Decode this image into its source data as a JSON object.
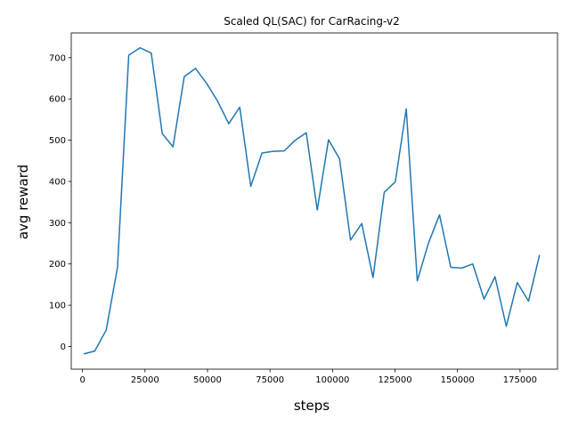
{
  "chart_data": {
    "type": "line",
    "title": "Scaled QL(SAC) for CarRacing-v2",
    "xlabel": "steps",
    "ylabel": "avg reward",
    "xlim": [
      -4500,
      190000
    ],
    "ylim": [
      -55,
      760
    ],
    "grid": false,
    "legend": "none",
    "x_ticks": [
      0,
      25000,
      50000,
      75000,
      100000,
      125000,
      150000,
      175000
    ],
    "x_tick_labels": [
      "0",
      "25000",
      "50000",
      "75000",
      "100000",
      "125000",
      "150000",
      "175000"
    ],
    "y_ticks": [
      0,
      100,
      200,
      300,
      400,
      500,
      600,
      700
    ],
    "y_tick_labels": [
      "0",
      "100",
      "200",
      "300",
      "400",
      "500",
      "600",
      "700"
    ],
    "series": [
      {
        "color": "#1f77b4",
        "x": [
          500,
          4900,
          9500,
          14000,
          18500,
          23000,
          27500,
          31900,
          36200,
          40700,
          45200,
          49600,
          54000,
          58500,
          62900,
          67300,
          71800,
          76200,
          80700,
          85100,
          89500,
          93900,
          98400,
          102800,
          107200,
          111700,
          116200,
          120700,
          125100,
          129500,
          133900,
          138400,
          142800,
          147300,
          151700,
          156100,
          160600,
          165000,
          169500,
          173900,
          178400,
          182800
        ],
        "y": [
          -18,
          -11,
          40,
          192,
          706,
          724,
          711,
          516,
          484,
          654,
          674,
          638,
          595,
          540,
          580,
          388,
          469,
          473,
          474,
          500,
          518,
          331,
          501,
          455,
          258,
          298,
          167,
          374,
          399,
          576,
          159,
          251,
          319,
          192,
          190,
          200,
          115,
          169,
          49,
          155,
          110,
          222
        ]
      }
    ]
  }
}
